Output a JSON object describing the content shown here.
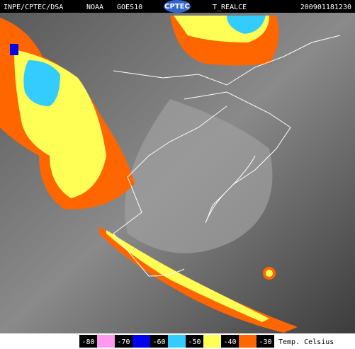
{
  "header": {
    "source": "INPE/CPTEC/DSA",
    "satellite": "NOAA",
    "sensor": "GOES10",
    "logo": "CPTEC",
    "product": "T_REALCE",
    "timestamp": "200901181230"
  },
  "legend": {
    "labels": [
      "-80",
      "-70",
      "-60",
      "-50",
      "-40",
      "-30"
    ],
    "colors": [
      "#ff99ee",
      "#0000ee",
      "#33ccff",
      "#ffff55",
      "#ff6600"
    ],
    "unit": "Temp. Celsius"
  }
}
